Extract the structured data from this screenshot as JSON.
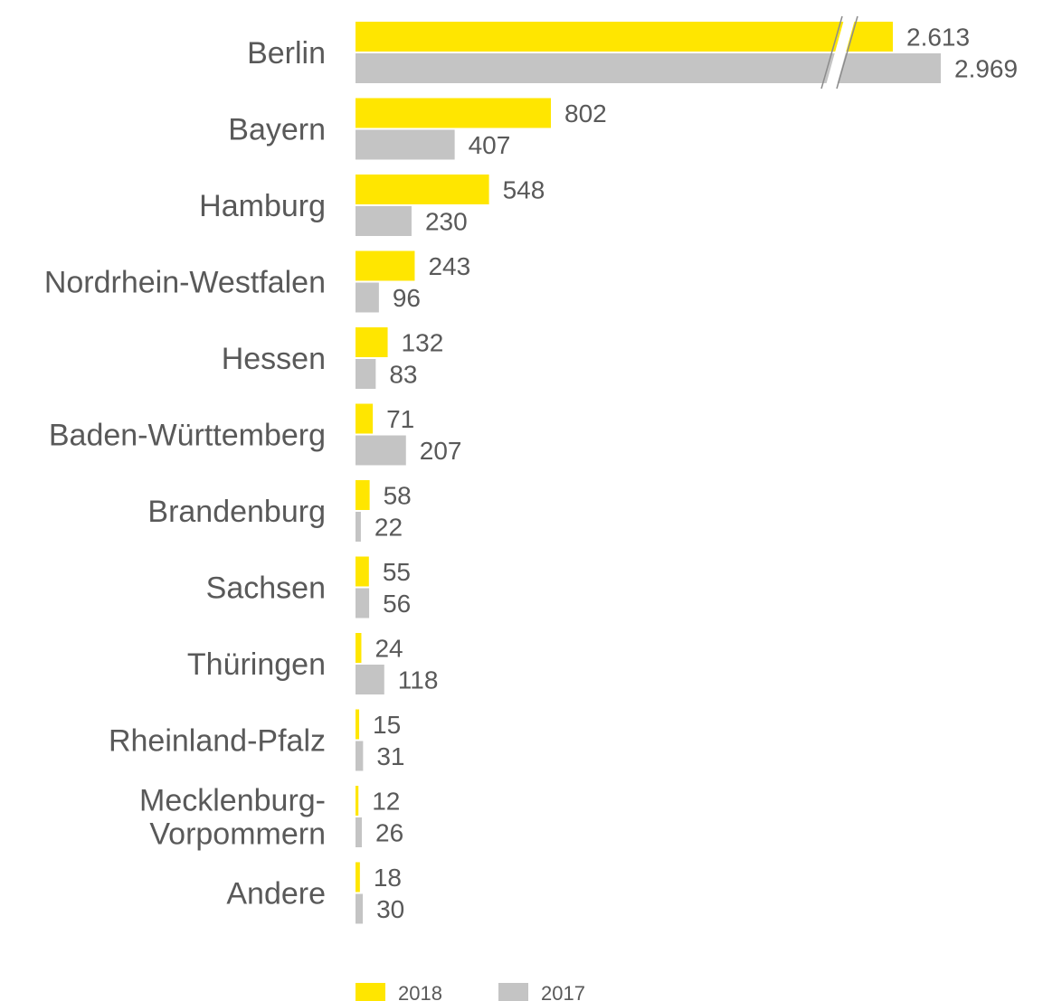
{
  "chart_data": {
    "type": "bar",
    "orientation": "horizontal",
    "categories": [
      "Berlin",
      "Bayern",
      "Hamburg",
      "Nordrhein-Westfalen",
      "Hessen",
      "Baden-Württemberg",
      "Brandenburg",
      "Sachsen",
      "Thüringen",
      "Rheinland-Pfalz",
      "Mecklenburg-Vorpommern",
      "Andere"
    ],
    "category_lines": [
      [
        "Berlin"
      ],
      [
        "Bayern"
      ],
      [
        "Hamburg"
      ],
      [
        "Nordrhein-Westfalen"
      ],
      [
        "Hessen"
      ],
      [
        "Baden-Württemberg"
      ],
      [
        "Brandenburg"
      ],
      [
        "Sachsen"
      ],
      [
        "Thüringen"
      ],
      [
        "Rheinland-Pfalz"
      ],
      [
        "Mecklenburg-",
        "Vorpommern"
      ],
      [
        "Andere"
      ]
    ],
    "series": [
      {
        "name": "2018",
        "color": "#FFE600",
        "values": [
          2613,
          802,
          548,
          243,
          132,
          71,
          58,
          55,
          24,
          15,
          12,
          18
        ],
        "labels": [
          "2.613",
          "802",
          "548",
          "243",
          "132",
          "71",
          "58",
          "55",
          "24",
          "15",
          "12",
          "18"
        ]
      },
      {
        "name": "2017",
        "color": "#C4C4C4",
        "values": [
          2969,
          407,
          230,
          96,
          83,
          207,
          22,
          56,
          118,
          31,
          26,
          30
        ],
        "labels": [
          "2.969",
          "407",
          "230",
          "96",
          "83",
          "207",
          "22",
          "56",
          "118",
          "31",
          "26",
          "30"
        ]
      }
    ],
    "axis_break": true,
    "legend_position": "bottom",
    "grid": false,
    "title": "",
    "xlabel": "",
    "ylabel": ""
  }
}
